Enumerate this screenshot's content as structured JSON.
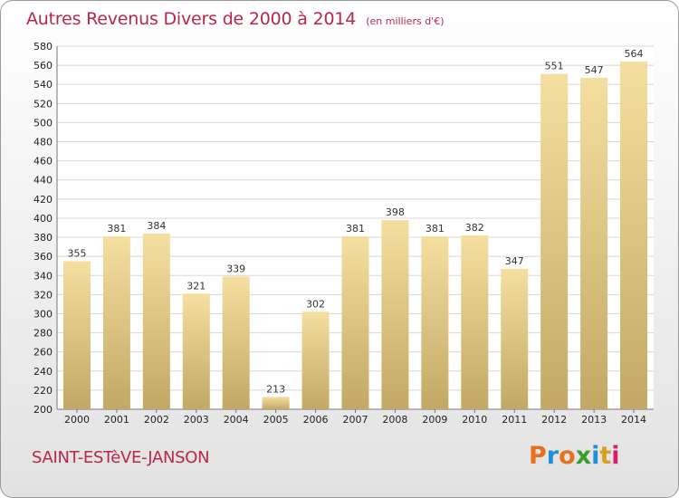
{
  "header": {
    "title": "Autres Revenus Divers de 2000 à 2014",
    "subtitle": "(en milliers d'€)"
  },
  "footer": {
    "commune": "SAINT-ESTèVE-JANSON",
    "logo_text": "Proxiti",
    "logo_colors": [
      "#e8711f",
      "#1f8fd6",
      "#e8711f",
      "#3a9e2f",
      "#1f8fd6",
      "#d6a11f",
      "#d61f6e"
    ]
  },
  "chart_data": {
    "type": "bar",
    "categories": [
      "2000",
      "2001",
      "2002",
      "2003",
      "2004",
      "2005",
      "2006",
      "2007",
      "2008",
      "2009",
      "2010",
      "2011",
      "2012",
      "2013",
      "2014"
    ],
    "values": [
      355,
      381,
      384,
      321,
      339,
      213,
      302,
      381,
      398,
      381,
      382,
      347,
      551,
      547,
      564
    ],
    "title": "Autres Revenus Divers de 2000 à 2014",
    "subtitle": "(en milliers d'€)",
    "ylim": [
      200,
      580
    ],
    "ytick_step": 20,
    "grid": true,
    "bar_color_top": "#f5dfa0",
    "bar_color_bottom": "#c2a864",
    "grid_color": "#d8d8d8"
  }
}
